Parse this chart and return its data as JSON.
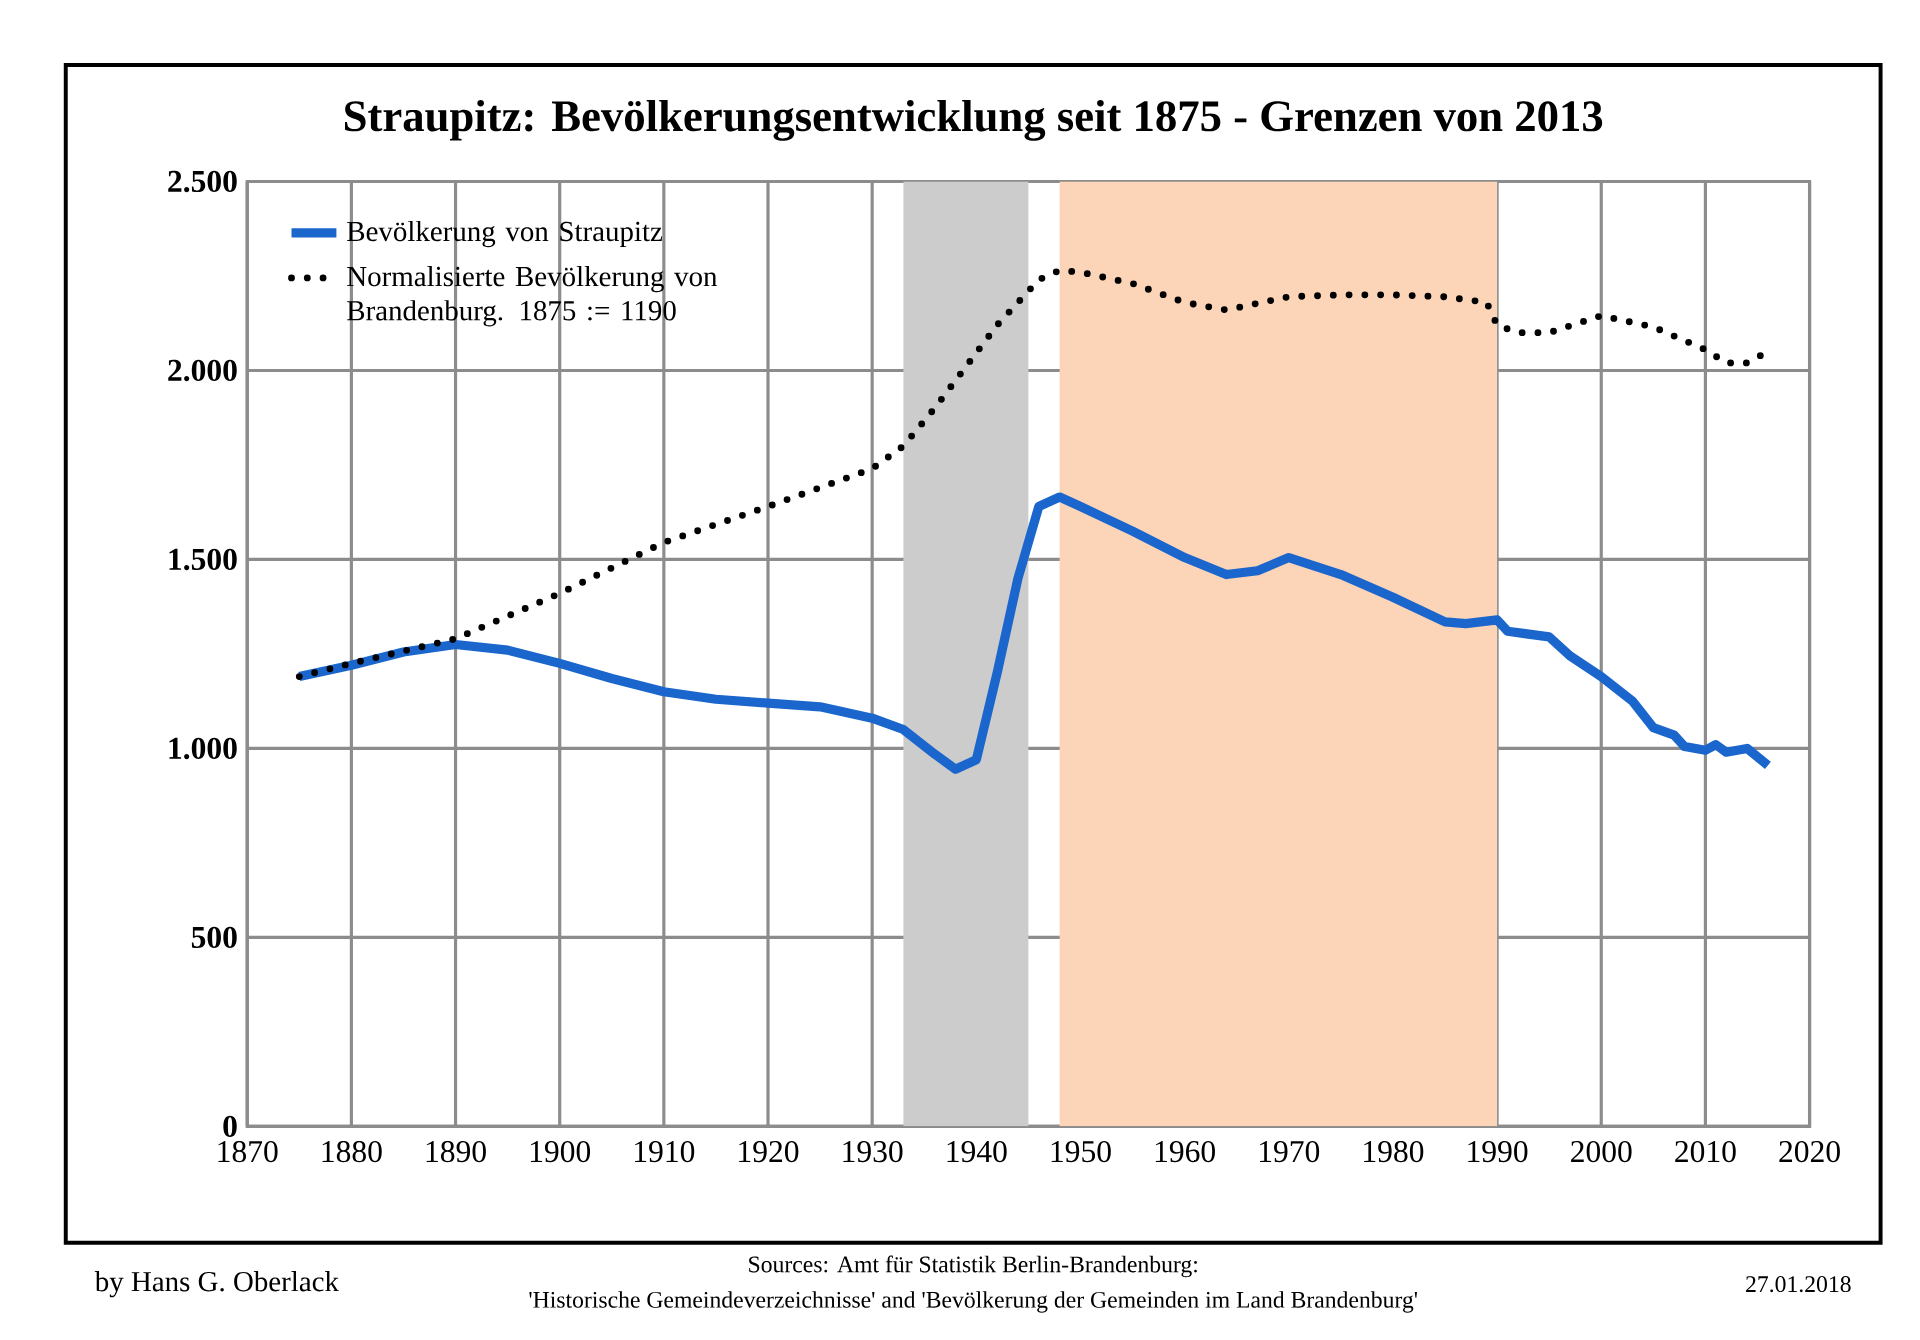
{
  "chart_data": {
    "type": "line",
    "title": "Straupitz: Bevölkerungsentwicklung seit 1875 - Grenzen von 2013",
    "xlim": [
      1870,
      2020
    ],
    "xticks": [
      1870,
      1880,
      1890,
      1900,
      1910,
      1920,
      1930,
      1940,
      1950,
      1960,
      1970,
      1980,
      1990,
      2000,
      2010,
      2020
    ],
    "ylim": [
      0,
      2500
    ],
    "yticks": [
      {
        "value": 0,
        "label": "0"
      },
      {
        "value": 500,
        "label": "500"
      },
      {
        "value": 1000,
        "label": "1.000"
      },
      {
        "value": 1500,
        "label": "1.500"
      },
      {
        "value": 2000,
        "label": "2.000"
      },
      {
        "value": 2500,
        "label": "2.500"
      }
    ],
    "grid": true,
    "legend": "top left",
    "marker": "none",
    "series": [
      {
        "name": "Bevölkerung von Straupitz",
        "color": "#1a66cc",
        "line_style": "solid",
        "x": [
          1875,
          1880,
          1885,
          1890,
          1895,
          1900,
          1905,
          1910,
          1915,
          1920,
          1925,
          1930,
          1933,
          1936,
          1938,
          1940,
          1942,
          1944,
          1946,
          1948,
          1950,
          1955,
          1960,
          1964,
          1967,
          1970,
          1975,
          1980,
          1985,
          1987,
          1990,
          1991,
          1995,
          1997,
          2000,
          2003,
          2005,
          2007,
          2008,
          2010,
          2011,
          2012,
          2013,
          2014,
          2016
        ],
        "values": [
          1190,
          1220,
          1255,
          1275,
          1260,
          1225,
          1185,
          1150,
          1130,
          1120,
          1110,
          1080,
          1050,
          985,
          945,
          970,
          1200,
          1450,
          1640,
          1665,
          1640,
          1575,
          1505,
          1460,
          1470,
          1505,
          1460,
          1400,
          1335,
          1330,
          1340,
          1310,
          1295,
          1245,
          1190,
          1125,
          1055,
          1035,
          1005,
          995,
          1010,
          990,
          995,
          1000,
          955
        ]
      },
      {
        "name": "Normalisierte Bevölkerung von Brandenburg. 1875 := 1190",
        "color": "#000000",
        "line_style": "dotted",
        "x": [
          1875,
          1880,
          1890,
          1900,
          1910,
          1920,
          1930,
          1933,
          1936,
          1939,
          1942,
          1946,
          1948,
          1950,
          1955,
          1960,
          1964,
          1970,
          1975,
          1980,
          1985,
          1989,
          1990,
          1992,
          1995,
          2000,
          2005,
          2010,
          2012,
          2014,
          2016
        ],
        "values": [
          1190,
          1225,
          1290,
          1410,
          1545,
          1640,
          1740,
          1800,
          1900,
          2010,
          2120,
          2240,
          2265,
          2260,
          2230,
          2180,
          2160,
          2195,
          2200,
          2200,
          2195,
          2180,
          2120,
          2100,
          2100,
          2145,
          2115,
          2055,
          2020,
          2020,
          2050
        ]
      }
    ],
    "bands": [
      {
        "axis": "x",
        "from": 1933,
        "to": 1945,
        "color": "#cccccc"
      },
      {
        "axis": "x",
        "from": 1948,
        "to": 1990,
        "color": "#fcd5b9"
      }
    ],
    "annotations": [
      "by Hans G. Oberlack",
      "Sources: Amt für Statistik Berlin-Brandenburg:",
      "'Historische Gemeindeverzeichnisse' and 'Bevölkerung der Gemeinden im Land Brandenburg'",
      "27.01.2018"
    ]
  }
}
